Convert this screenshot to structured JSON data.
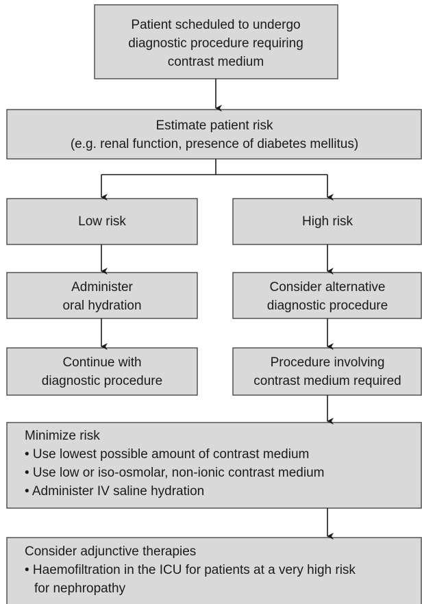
{
  "nodes": [
    {
      "lines": [
        "Patient scheduled to undergo",
        "diagnostic procedure requiring",
        "contrast medium"
      ]
    },
    {
      "lines": [
        "Estimate patient risk",
        "(e.g. renal function, presence of diabetes mellitus)"
      ]
    },
    {
      "lines": [
        "Low risk"
      ]
    },
    {
      "lines": [
        "High risk"
      ]
    },
    {
      "lines": [
        "Administer",
        "oral hydration"
      ]
    },
    {
      "lines": [
        "Consider alternative",
        "diagnostic procedure"
      ]
    },
    {
      "lines": [
        "Continue with",
        "diagnostic procedure"
      ]
    },
    {
      "lines": [
        "Procedure involving",
        "contrast medium required"
      ]
    },
    {
      "lines": [
        "Minimize risk",
        "• Use lowest possible amount of contrast medium",
        "• Use low or iso-osmolar, non-ionic contrast medium",
        "• Administer IV saline hydration"
      ]
    },
    {
      "lines": [
        "Consider adjunctive therapies",
        "• Haemofiltration in the ICU for patients at a very high risk",
        "for nephropathy"
      ]
    }
  ]
}
